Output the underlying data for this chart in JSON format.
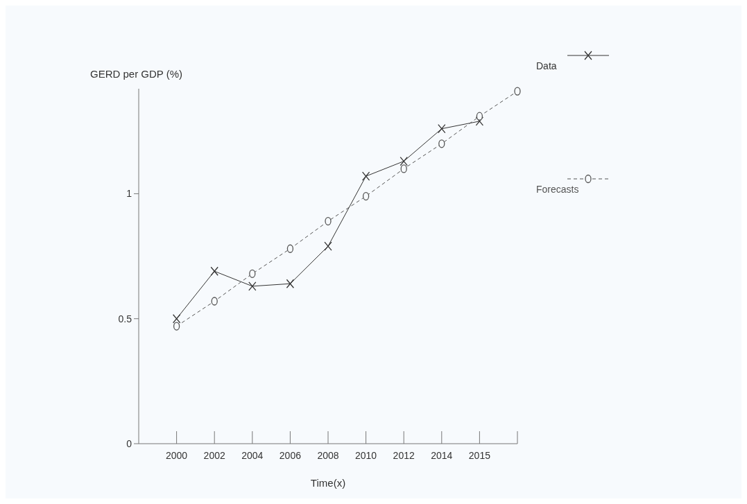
{
  "chart_data": {
    "type": "line",
    "ylabel": "GERD per GDP (%)",
    "xlabel": "Time(x)",
    "categories": [
      "2000",
      "2002",
      "2004",
      "2006",
      "2008",
      "2010",
      "2012",
      "2014",
      "2015",
      null
    ],
    "series": [
      {
        "name": "Data",
        "color": "#333333",
        "marker": "cross",
        "line_style": "solid",
        "values": [
          0.5,
          0.69,
          0.63,
          0.64,
          0.79,
          1.07,
          1.13,
          1.26,
          1.29,
          null
        ]
      },
      {
        "name": "Forecasts",
        "color": "#555555",
        "marker": "circle",
        "line_style": "dashed",
        "values": [
          0.47,
          0.57,
          0.68,
          0.78,
          0.89,
          0.99,
          1.1,
          1.2,
          1.31,
          1.41
        ]
      }
    ],
    "ylim": [
      0,
      1.42
    ],
    "yticks": [
      0,
      0.5,
      1
    ],
    "grid": false,
    "legend": "top right"
  }
}
